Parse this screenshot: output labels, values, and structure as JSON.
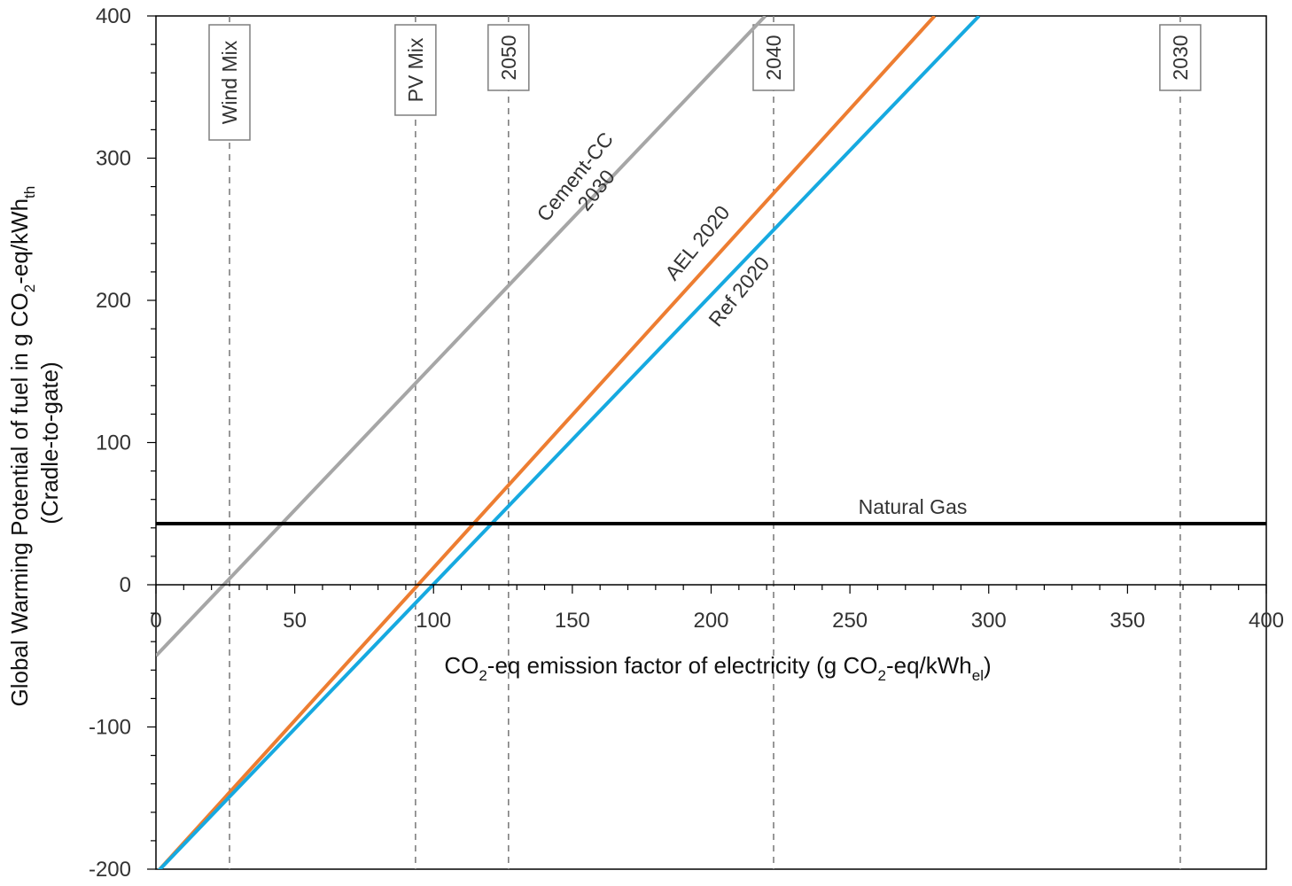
{
  "chart_data": {
    "type": "line",
    "title": "",
    "xlabel": {
      "pre": "CO",
      "sub1": "2",
      "mid": "-eq emission factor of electricity (g CO",
      "sub2": "2",
      "mid2": "-eq/kWh",
      "sub3": "el",
      "post": ")"
    },
    "ylabel": {
      "line1_pre": "Global Warming Potential of fuel in g CO",
      "line1_sub1": "2",
      "line1_mid": "-eq/kWh",
      "line1_sub2": "th",
      "line2": "(Cradle-to-gate)"
    },
    "xlim": [
      0,
      400
    ],
    "ylim": [
      -200,
      400
    ],
    "x_ticks": [
      0,
      50,
      100,
      150,
      200,
      250,
      300,
      350,
      400
    ],
    "x_tick_labels": [
      "0",
      "50",
      "100",
      "150",
      "200",
      "250",
      "300",
      "350",
      "400"
    ],
    "y_ticks": [
      -200,
      -100,
      0,
      100,
      200,
      300,
      400
    ],
    "y_tick_labels": [
      "-200",
      "-100",
      "0",
      "100",
      "200",
      "300",
      "400"
    ],
    "grid": false,
    "series": [
      {
        "name": "Cement-CC\n2030",
        "color": "#a6a6a6",
        "x": [
          0,
          219.5
        ],
        "y": [
          -50,
          400
        ]
      },
      {
        "name": "AEL 2020",
        "color": "#ed7d31",
        "x": [
          0,
          280.5
        ],
        "y": [
          -203,
          400
        ]
      },
      {
        "name": "Ref 2020",
        "color": "#16a9e0",
        "x": [
          0,
          296.5
        ],
        "y": [
          -203,
          400
        ]
      },
      {
        "name": "Natural Gas",
        "color": "#000000",
        "x": [
          0,
          400
        ],
        "y": [
          43,
          43
        ]
      }
    ],
    "series_labels": {
      "cement_line1": "Cement-CC",
      "cement_line2": "2030",
      "ael": "AEL 2020",
      "ref": "Ref 2020",
      "gas": "Natural Gas"
    },
    "vertical_markers": [
      {
        "label": "Wind Mix",
        "x": 26.5
      },
      {
        "label": "PV Mix",
        "x": 93.5
      },
      {
        "label": "2050",
        "x": 127
      },
      {
        "label": "2040",
        "x": 222.5
      },
      {
        "label": "2030",
        "x": 369
      }
    ]
  }
}
